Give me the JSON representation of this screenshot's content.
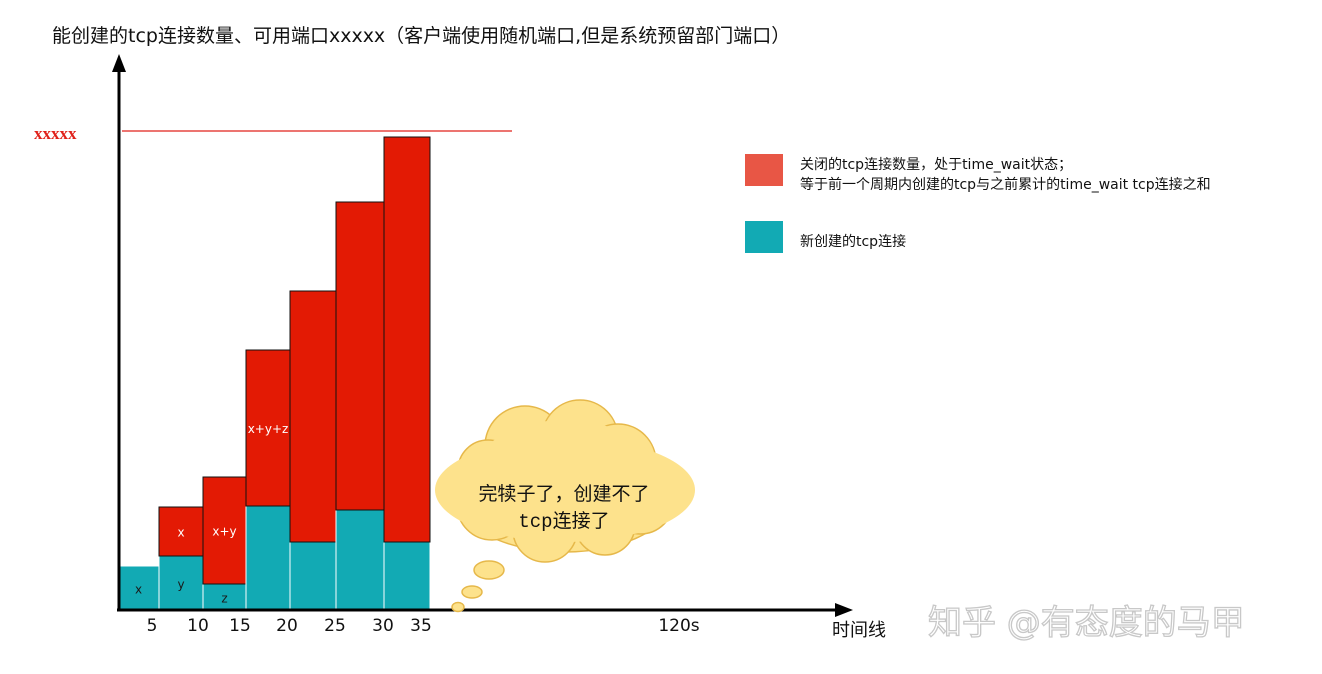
{
  "title": "能创建的tcp连接数量、可用端口xxxxx（客户端使用随机端口,但是系统预留部门端口）",
  "limit_label": "xxxxx",
  "x_axis_label": "时间线",
  "legend": {
    "closed_line1": "关闭的tcp连接数量，处于time_wait状态；",
    "closed_line2": "等于前一个周期内创建的tcp与之前累计的time_wait tcp连接之和",
    "new_label": "新创建的tcp连接"
  },
  "callout": {
    "line1": "完犊子了，创建不了",
    "line2_mono": "tcp",
    "line2_rest": "连接了"
  },
  "watermark": "知乎 @有态度的马甲",
  "colors": {
    "closed": "#e31a04",
    "new": "#12aab4",
    "legend_closed": "#e85645",
    "limit_line": "#e0211a",
    "cloud_fill": "#fde28c",
    "cloud_stroke": "#e6b84a"
  },
  "chart_data": {
    "type": "bar",
    "x_ticks": [
      "5",
      "10",
      "15",
      "20",
      "25",
      "30",
      "35",
      "120s"
    ],
    "series": [
      {
        "name": "新创建的tcp连接",
        "values": [
          45,
          55,
          27,
          105,
          69,
          101,
          69
        ]
      },
      {
        "name": "关闭的tcp连接数量，处于time_wait状态；",
        "values": [
          0,
          49,
          107,
          156,
          251,
          308,
          405
        ]
      }
    ],
    "limit": 480,
    "bar_labels": [
      {
        "bar": 0,
        "segment": "new",
        "text": "x"
      },
      {
        "bar": 1,
        "segment": "new",
        "text": "y"
      },
      {
        "bar": 2,
        "segment": "new",
        "text": "z"
      },
      {
        "bar": 1,
        "segment": "closed",
        "text": "x"
      },
      {
        "bar": 2,
        "segment": "closed",
        "text": "x+y"
      },
      {
        "bar": 3,
        "segment": "closed",
        "text": "x+y+z"
      }
    ]
  }
}
